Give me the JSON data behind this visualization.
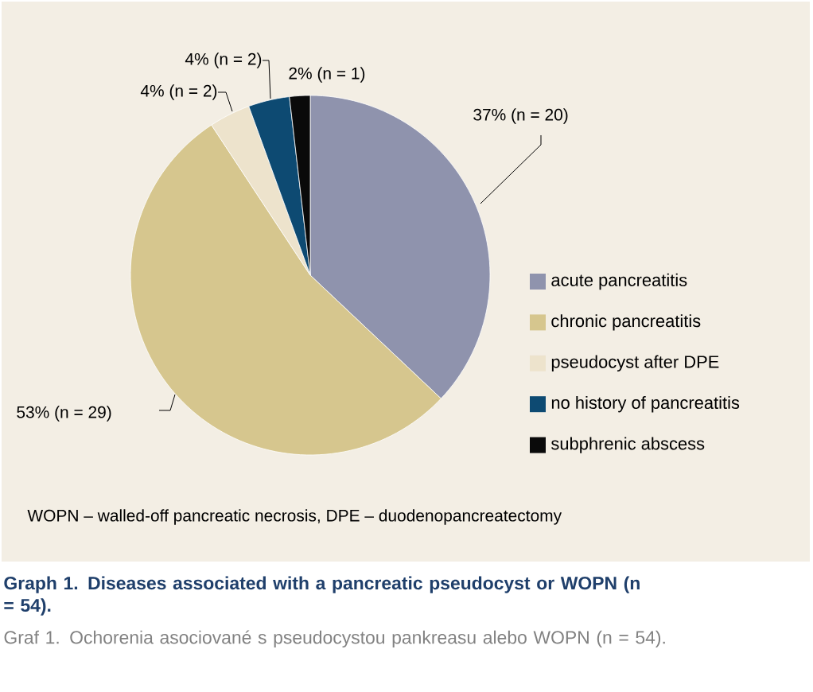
{
  "chart_data": {
    "type": "pie",
    "title": "Graph 1. Diseases associated with a pancreatic pseudocyst or WOPN (n = 54).",
    "subtitle": "Graf 1. Ochorenia asociované s pseudocystou pankreasu alebo WOPN (n = 54).",
    "categories": [
      "acute pancreatitis",
      "chronic pancreatitis",
      "pseudocyst after DPE",
      "no history of pancreatitis",
      "subphrenic abscess"
    ],
    "values": [
      20,
      29,
      2,
      2,
      1
    ],
    "value_labels": [
      "37% (n = 20)",
      "53% (n = 29)",
      "4% (n = 2)",
      "4% (n = 2)",
      "2% (n = 1)"
    ],
    "colors": [
      "#8f93ad",
      "#d6c68e",
      "#ede3cc",
      "#0d4a72",
      "#0a0a0a"
    ],
    "legend": "right",
    "annotations": [
      "WOPN – walled-off pancreatic necrosis, DPE – duodenopancreatectomy"
    ]
  }
}
